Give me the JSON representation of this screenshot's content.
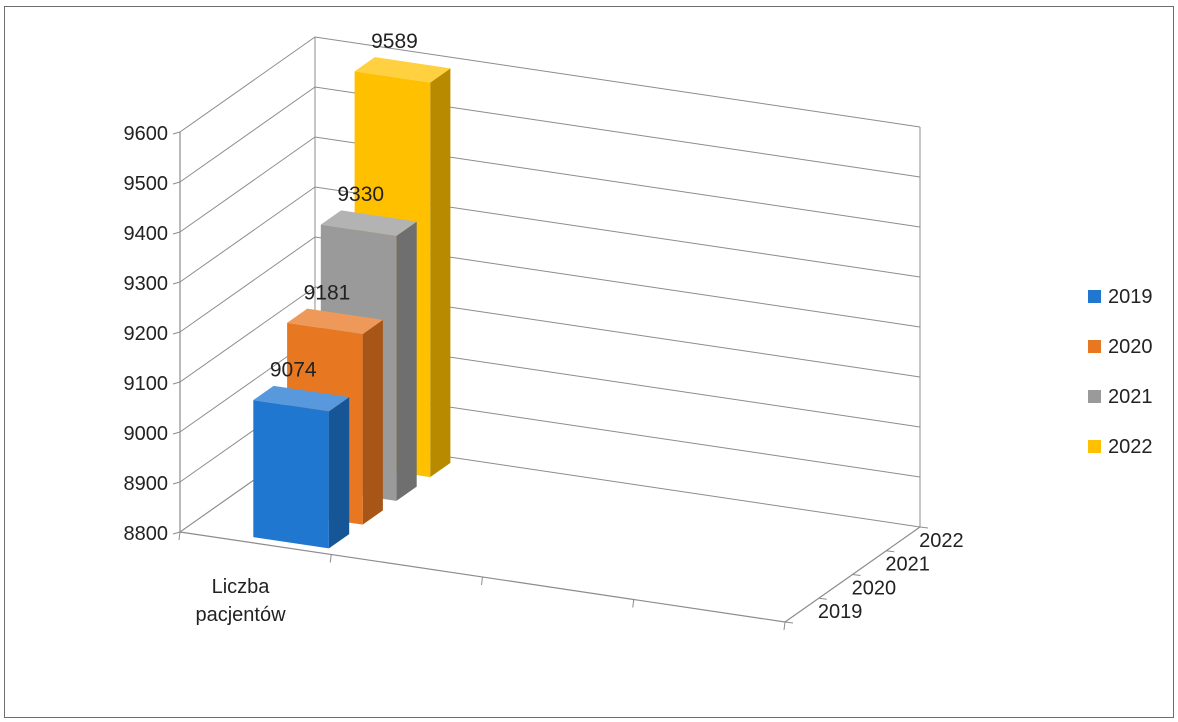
{
  "chart_data": {
    "type": "bar",
    "title": "",
    "xlabel": "",
    "ylabel": "",
    "categories": [
      "Liczba pacjentów"
    ],
    "series": [
      {
        "name": "2019",
        "values": [
          9074
        ],
        "color": "#1f77d0"
      },
      {
        "name": "2020",
        "values": [
          9181
        ],
        "color": "#e87722"
      },
      {
        "name": "2021",
        "values": [
          9330
        ],
        "color": "#9a9a9a"
      },
      {
        "name": "2022",
        "values": [
          9589
        ],
        "color": "#ffc000"
      }
    ],
    "ylim": [
      8800,
      9600
    ],
    "yticks": [
      8800,
      8900,
      9000,
      9100,
      9200,
      9300,
      9400,
      9500,
      9600
    ],
    "depth_axis_labels": [
      "2019",
      "2020",
      "2021",
      "2022"
    ],
    "grid": true,
    "legend_position": "right",
    "three_d": true
  }
}
